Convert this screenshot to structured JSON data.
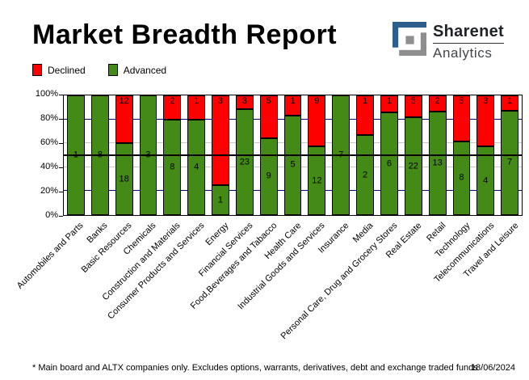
{
  "header": {
    "title": "Market Breadth Report",
    "logo_line1": "Sharenet",
    "logo_line2": "Analytics"
  },
  "legend": {
    "declined_label": "Declined",
    "advanced_label": "Advanced"
  },
  "colors": {
    "declined_red": "#ff0000",
    "advanced_green": "#448a16",
    "gridline_navy": "#000080",
    "gridline_gray": "#c8c8c8",
    "fifty_pct_line": "#000000",
    "logo_blue": "#2d5f8e",
    "logo_gray": "#8e9090"
  },
  "chart_data": {
    "type": "bar",
    "stacked": true,
    "orientation": "vertical",
    "title": "Market Breadth Report",
    "note": "values are counts of stocks; bars normalized to 100%",
    "categories": [
      "Automobiles and Parts",
      "Banks",
      "Basic Resources",
      "Chemicals",
      "Construction and Materials",
      "Consumer Products and Services",
      "Energy",
      "Financial Services",
      "Food,Beverages and Tabacco",
      "Health Care",
      "Industrial Goods and Services",
      "Insurance",
      "Media",
      "Personal Care, Drug and Grocery Stores",
      "Real Estate",
      "Retail",
      "Technology",
      "Telecommunications",
      "Travel and Leisure"
    ],
    "series": [
      {
        "name": "Advanced",
        "color": "#448a16",
        "values": [
          1,
          8,
          18,
          3,
          8,
          4,
          1,
          23,
          9,
          5,
          12,
          7,
          2,
          6,
          22,
          13,
          8,
          4,
          7
        ]
      },
      {
        "name": "Declined",
        "color": "#ff0000",
        "values": [
          0,
          0,
          12,
          0,
          2,
          1,
          3,
          3,
          5,
          1,
          9,
          0,
          1,
          1,
          5,
          2,
          5,
          3,
          1
        ]
      }
    ],
    "ylim": [
      0,
      100
    ],
    "yticks": [
      "0%",
      "20%",
      "40%",
      "60%",
      "80%",
      "100%"
    ],
    "gridlines": {
      "navy_at": [
        20,
        80
      ],
      "gray_at": [
        40,
        60
      ],
      "black_at": [
        50
      ]
    },
    "legend_position": "top-left",
    "grid": true
  },
  "footer": {
    "note": "* Main board and ALTX companies only. Excludes options, warrants, derivatives, debt and exchange traded funds",
    "date": "18/06/2024"
  }
}
